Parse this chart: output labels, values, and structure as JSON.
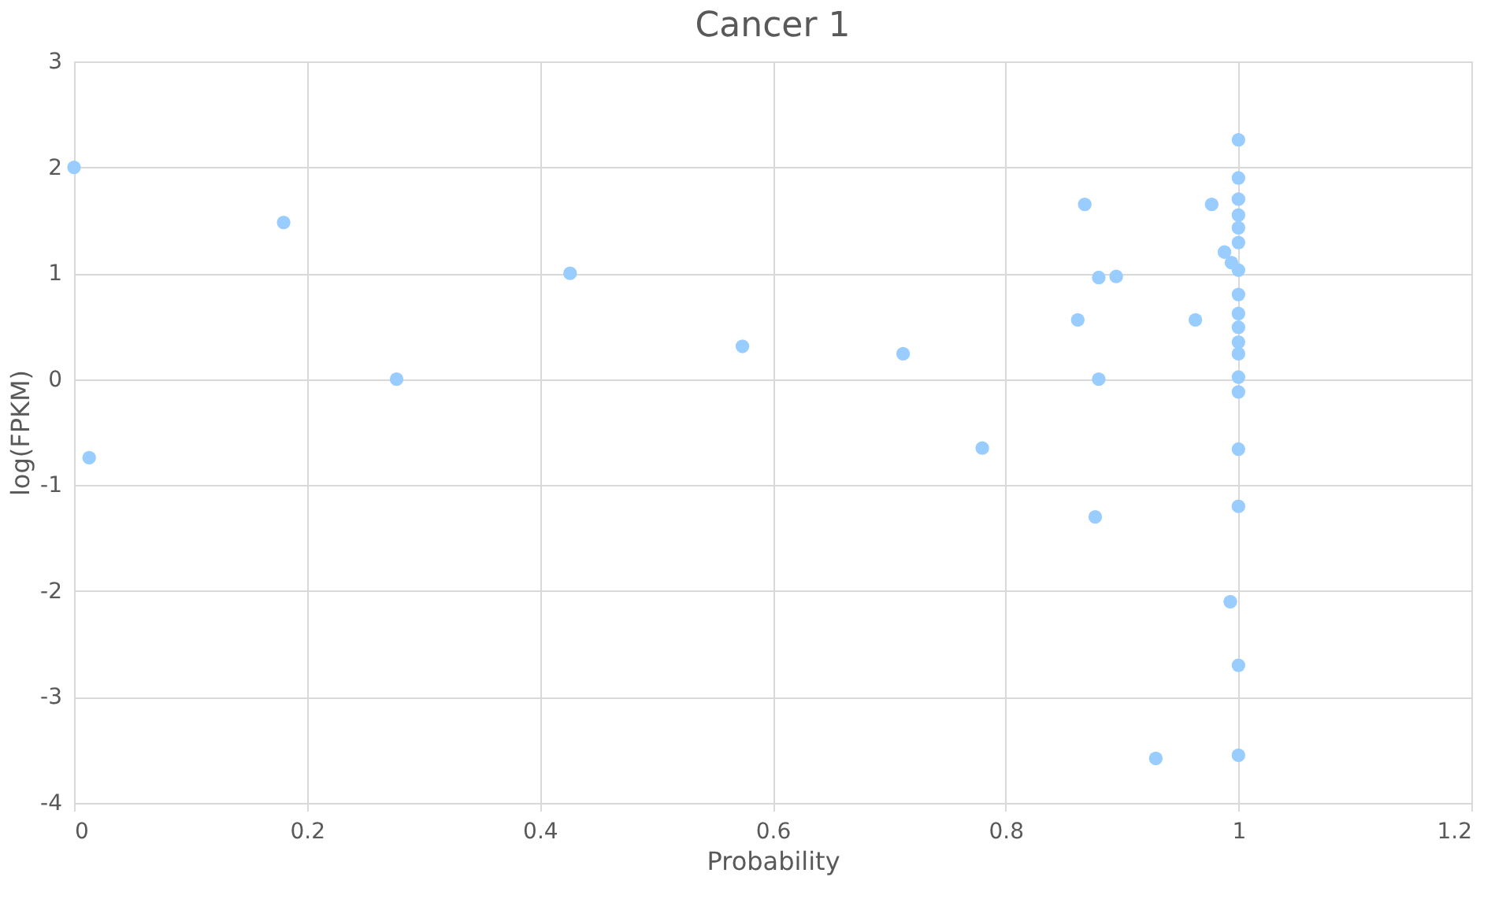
{
  "chart_data": {
    "type": "scatter",
    "title": "Cancer 1",
    "xlabel": "Probability",
    "ylabel": "log(FPKM)",
    "x": [
      0,
      0.013,
      0.18,
      0.277,
      0.426,
      0.574,
      0.712,
      0.78,
      0.868,
      0.862,
      0.88,
      0.895,
      0.88,
      0.877,
      0.963,
      0.977,
      0.929,
      0.993,
      1,
      1,
      1,
      1,
      1,
      1,
      1,
      1,
      1,
      1,
      1,
      1,
      1,
      1,
      1,
      1,
      1,
      1,
      0.988,
      0.994
    ],
    "series": [
      {
        "color": "#99ccff",
        "values": [
          2.0,
          -0.74,
          1.48,
          0.0,
          1.0,
          0.31,
          0.24,
          -0.65,
          1.65,
          0.56,
          0.96,
          0.97,
          0.0,
          -1.3,
          0.56,
          1.65,
          -3.58,
          -2.1,
          -2.7,
          -3.55,
          -1.2,
          -0.66,
          2.26,
          1.9,
          1.7,
          1.55,
          1.43,
          1.29,
          1.03,
          0.8,
          0.62,
          0.49,
          0.35,
          0.24,
          0.02,
          -0.12,
          1.2,
          1.1
        ]
      }
    ],
    "xlim": [
      0,
      1.2
    ],
    "xticks": [
      0,
      0.2,
      0.4,
      0.6,
      0.8,
      1,
      1.2
    ],
    "ylim": [
      -4,
      3
    ],
    "yticks": [
      -4,
      -3,
      -2,
      -1,
      0,
      1,
      2,
      3
    ],
    "grid": true,
    "marker": "circle"
  }
}
